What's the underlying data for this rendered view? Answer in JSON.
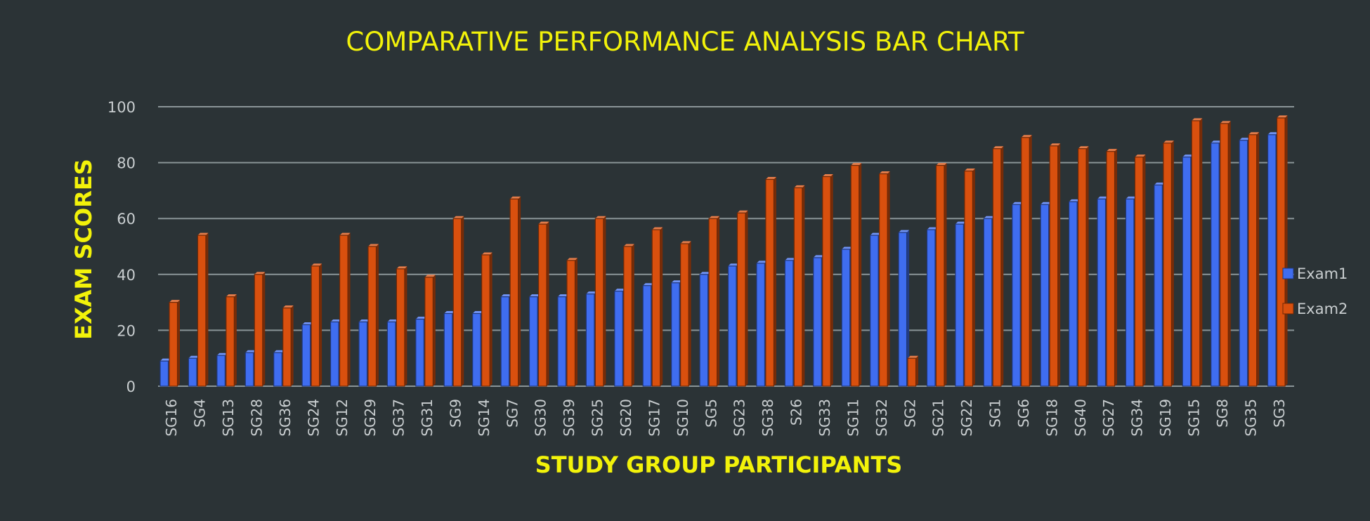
{
  "chart_data": {
    "type": "bar",
    "title": "COMPARATIVE PERFORMANCE ANALYSIS BAR CHART",
    "xlabel": "STUDY GROUP PARTICIPANTS",
    "ylabel": "EXAM SCORES",
    "ylim": [
      0,
      100
    ],
    "yticks": [
      0,
      20,
      40,
      60,
      80,
      100
    ],
    "grid": true,
    "legend_position": "right",
    "categories": [
      "SG16",
      "SG4",
      "SG13",
      "SG28",
      "SG36",
      "SG24",
      "SG12",
      "SG29",
      "SG37",
      "SG31",
      "SG9",
      "SG14",
      "SG7",
      "SG30",
      "SG39",
      "SG25",
      "SG20",
      "SG17",
      "SG10",
      "SG5",
      "SG23",
      "SG38",
      "S26",
      "SG33",
      "SG11",
      "SG32",
      "SG2",
      "SG21",
      "SG22",
      "SG1",
      "SG6",
      "SG18",
      "SG40",
      "SG27",
      "SG34",
      "SG19",
      "SG15",
      "SG8",
      "SG35",
      "SG3"
    ],
    "series": [
      {
        "name": "Exam1",
        "color": "#3f6df0",
        "values": [
          9,
          10,
          11,
          12,
          12,
          22,
          23,
          23,
          23,
          24,
          26,
          26,
          32,
          32,
          32,
          33,
          34,
          36,
          37,
          40,
          43,
          44,
          45,
          46,
          49,
          54,
          55,
          56,
          58,
          60,
          65,
          65,
          66,
          67,
          67,
          72,
          82,
          87,
          88,
          90
        ]
      },
      {
        "name": "Exam2",
        "color": "#d9500e",
        "values": [
          30,
          54,
          32,
          40,
          28,
          43,
          54,
          50,
          42,
          39,
          60,
          47,
          67,
          58,
          45,
          60,
          50,
          56,
          51,
          60,
          62,
          74,
          71,
          75,
          79,
          76,
          10,
          79,
          77,
          85,
          89,
          86,
          85,
          84,
          82,
          87,
          95,
          94,
          90,
          96
        ]
      }
    ]
  }
}
